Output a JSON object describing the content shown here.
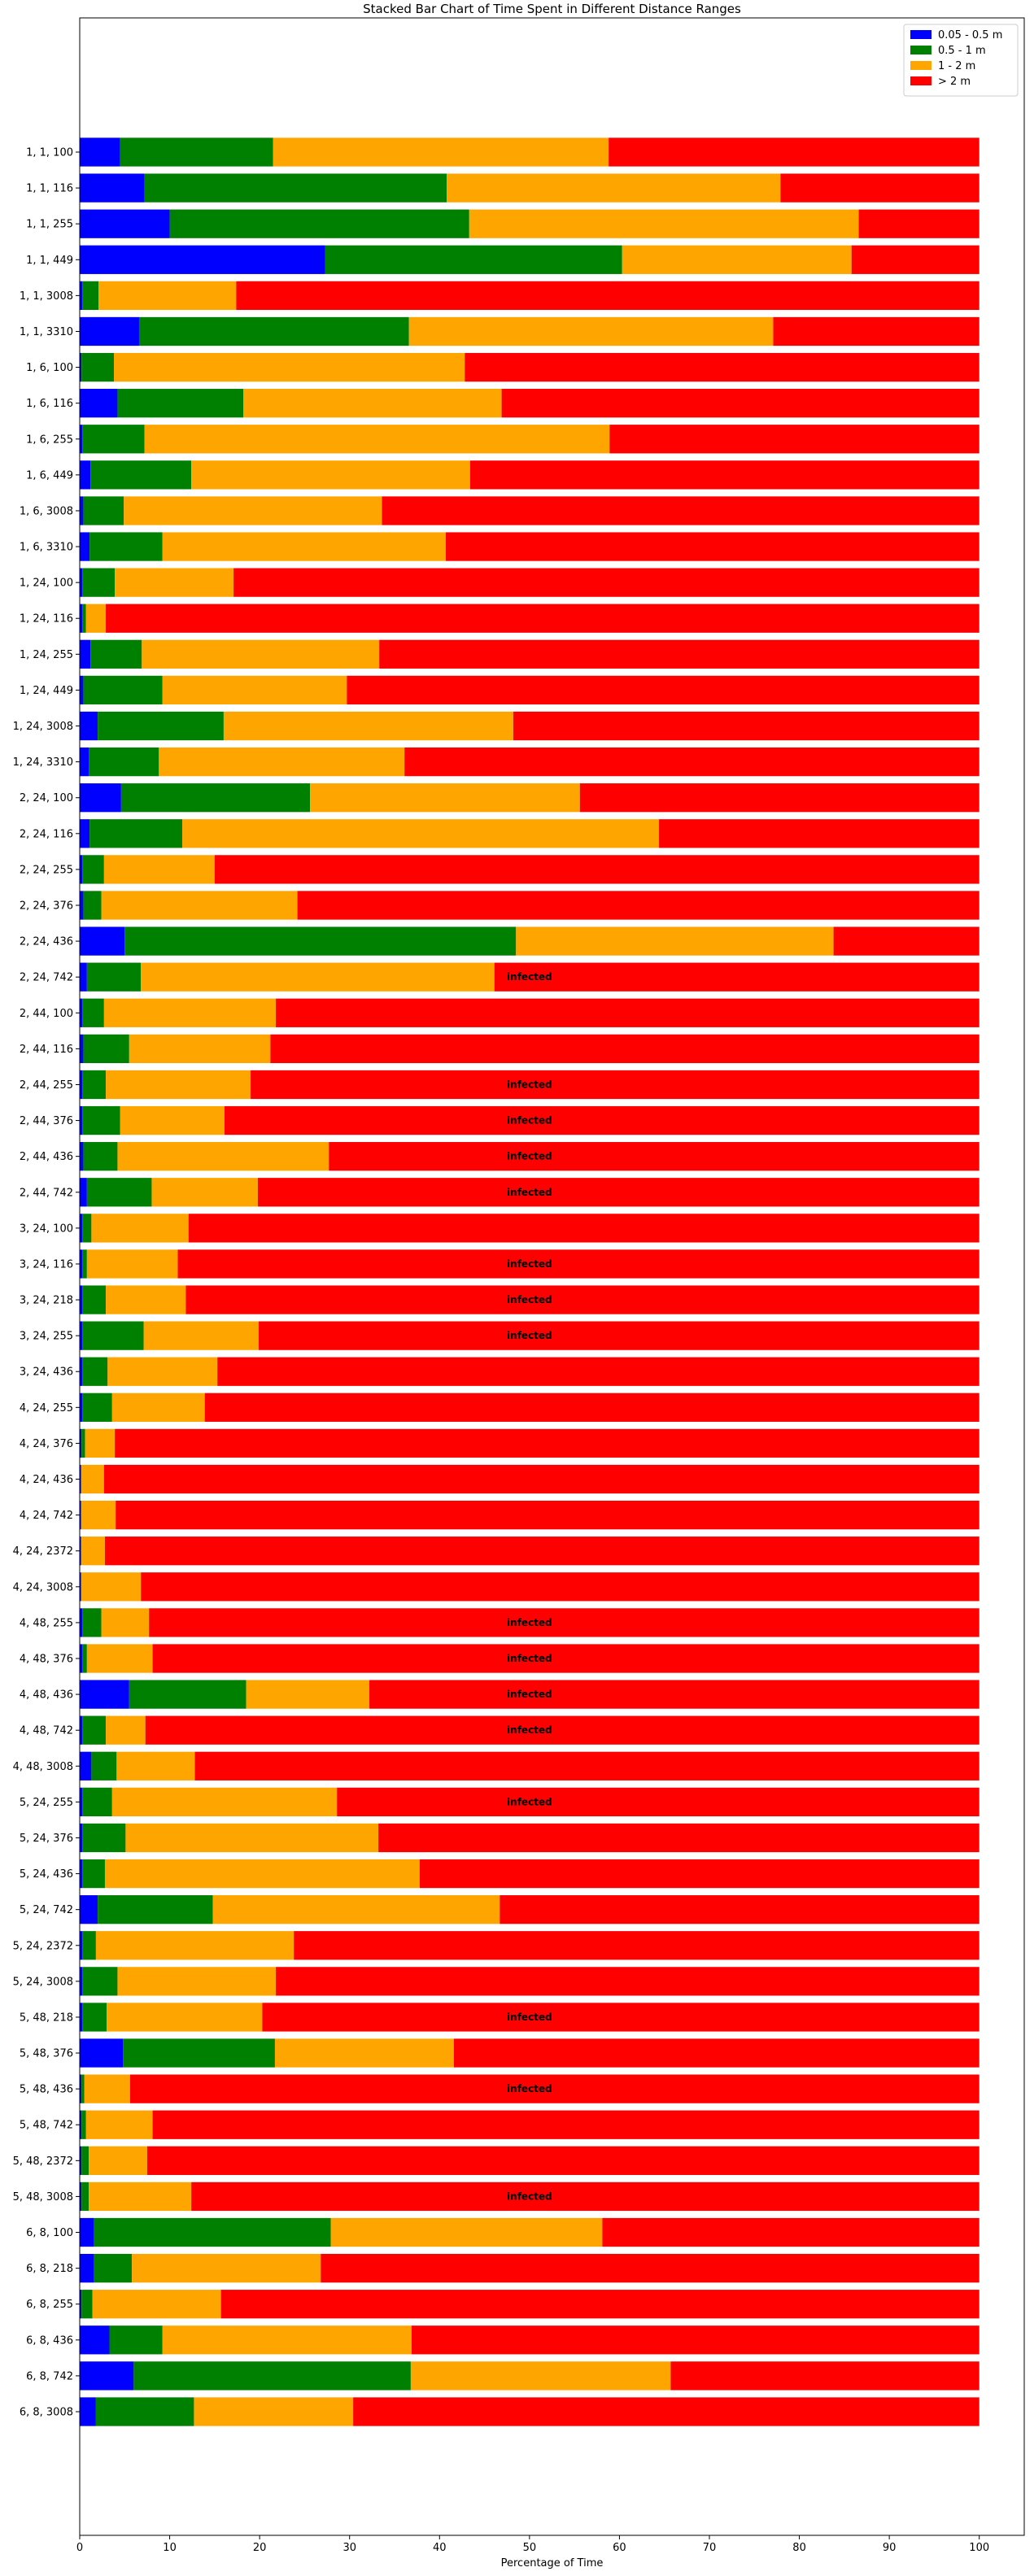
{
  "chart_data": {
    "type": "bar",
    "orientation": "horizontal",
    "stacked": true,
    "title": "Stacked Bar Chart of Time Spent in Different Distance Ranges",
    "xlabel": "Percentage of Time",
    "ylabel": "",
    "xlim": [
      0,
      105
    ],
    "xticks": [
      0,
      10,
      20,
      30,
      40,
      50,
      60,
      70,
      80,
      90,
      100
    ],
    "grid": false,
    "legend_position": "top-right",
    "categories": [
      "1, 1, 100",
      "1, 1, 116",
      "1, 1, 255",
      "1, 1, 449",
      "1, 1, 3008",
      "1, 1, 3310",
      "1, 6, 100",
      "1, 6, 116",
      "1, 6, 255",
      "1, 6, 449",
      "1, 6, 3008",
      "1, 6, 3310",
      "1, 24, 100",
      "1, 24, 116",
      "1, 24, 255",
      "1, 24, 449",
      "1, 24, 3008",
      "1, 24, 3310",
      "2, 24, 100",
      "2, 24, 116",
      "2, 24, 255",
      "2, 24, 376",
      "2, 24, 436",
      "2, 24, 742",
      "2, 44, 100",
      "2, 44, 116",
      "2, 44, 255",
      "2, 44, 376",
      "2, 44, 436",
      "2, 44, 742",
      "3, 24, 100",
      "3, 24, 116",
      "3, 24, 218",
      "3, 24, 255",
      "3, 24, 436",
      "4, 24, 255",
      "4, 24, 376",
      "4, 24, 436",
      "4, 24, 742",
      "4, 24, 2372",
      "4, 24, 3008",
      "4, 48, 255",
      "4, 48, 376",
      "4, 48, 436",
      "4, 48, 742",
      "4, 48, 3008",
      "5, 24, 255",
      "5, 24, 376",
      "5, 24, 436",
      "5, 24, 742",
      "5, 24, 2372",
      "5, 24, 3008",
      "5, 48, 218",
      "5, 48, 376",
      "5, 48, 436",
      "5, 48, 742",
      "5, 48, 2372",
      "5, 48, 3008",
      "6, 8, 100",
      "6, 8, 218",
      "6, 8, 255",
      "6, 8, 436",
      "6, 8, 742",
      "6, 8, 3008"
    ],
    "series": [
      {
        "name": "0.05 - 0.5 m",
        "color": "#0000ff",
        "values": [
          4.5,
          7.2,
          10.0,
          27.3,
          0.3,
          6.6,
          0.2,
          4.2,
          0.3,
          1.2,
          0.4,
          1.1,
          0.3,
          0.3,
          1.2,
          0.4,
          2.0,
          1.0,
          4.6,
          1.1,
          0.3,
          0.4,
          5.0,
          0.8,
          0.3,
          0.4,
          0.3,
          0.3,
          0.4,
          0.8,
          0.3,
          0.3,
          0.3,
          0.3,
          0.3,
          0.3,
          0.2,
          0.1,
          0.1,
          0.1,
          0.1,
          0.3,
          0.3,
          5.5,
          0.3,
          1.3,
          0.3,
          0.3,
          0.3,
          2.0,
          0.3,
          0.3,
          0.3,
          4.8,
          0.2,
          0.2,
          0.2,
          0.2,
          1.6,
          1.6,
          0.2,
          3.3,
          6.0,
          1.8
        ]
      },
      {
        "name": "0.5 - 1 m",
        "color": "#008000",
        "values": [
          17.0,
          33.6,
          33.3,
          33.0,
          1.8,
          30.0,
          3.6,
          14.0,
          6.9,
          11.2,
          4.5,
          8.1,
          3.6,
          0.4,
          5.7,
          8.8,
          14.0,
          7.8,
          21.0,
          10.3,
          2.4,
          2.0,
          43.5,
          6.0,
          2.4,
          5.1,
          2.6,
          4.2,
          3.8,
          7.2,
          1.0,
          0.5,
          2.6,
          6.8,
          2.8,
          3.3,
          0.4,
          0.1,
          0.1,
          0.1,
          0.1,
          2.1,
          0.5,
          13.0,
          2.6,
          2.8,
          3.3,
          4.8,
          2.5,
          12.8,
          1.5,
          3.9,
          2.7,
          16.9,
          0.3,
          0.5,
          0.8,
          0.8,
          26.3,
          4.2,
          1.2,
          5.9,
          30.8,
          10.9
        ]
      },
      {
        "name": "1 - 2 m",
        "color": "#ffa500",
        "values": [
          37.3,
          37.1,
          43.3,
          25.5,
          15.3,
          40.5,
          39.0,
          28.7,
          51.7,
          31.0,
          28.7,
          31.5,
          13.2,
          2.2,
          26.4,
          20.5,
          32.2,
          27.3,
          30.0,
          53.0,
          12.3,
          21.8,
          35.3,
          39.3,
          19.1,
          15.7,
          16.1,
          11.6,
          23.5,
          11.8,
          10.8,
          10.1,
          8.9,
          12.8,
          12.2,
          10.3,
          3.3,
          2.5,
          3.8,
          2.6,
          6.6,
          5.3,
          7.3,
          13.7,
          4.4,
          8.7,
          25.0,
          28.1,
          35.0,
          31.9,
          22.0,
          17.6,
          17.3,
          19.9,
          5.1,
          7.4,
          6.5,
          11.4,
          30.2,
          21.0,
          14.3,
          27.7,
          28.9,
          17.7
        ]
      },
      {
        "name": "> 2 m",
        "color": "#ff0000",
        "values": [
          41.2,
          22.1,
          13.4,
          14.2,
          82.6,
          22.9,
          57.2,
          53.1,
          41.1,
          56.6,
          66.4,
          59.3,
          82.9,
          97.1,
          66.7,
          70.3,
          51.8,
          63.9,
          44.4,
          35.6,
          85.0,
          75.8,
          16.2,
          53.9,
          78.2,
          78.8,
          81.0,
          83.9,
          72.3,
          80.2,
          87.9,
          89.1,
          88.2,
          80.1,
          84.7,
          86.1,
          96.1,
          97.3,
          96.0,
          97.2,
          93.2,
          92.3,
          91.9,
          67.8,
          92.7,
          87.2,
          71.4,
          66.8,
          62.2,
          53.3,
          76.2,
          78.2,
          79.7,
          58.4,
          94.4,
          91.9,
          92.5,
          87.6,
          41.9,
          73.2,
          84.3,
          63.1,
          34.3,
          69.6
        ]
      }
    ],
    "annotations": [
      {
        "category": "2, 24, 742",
        "text": "infected"
      },
      {
        "category": "2, 44, 255",
        "text": "infected"
      },
      {
        "category": "2, 44, 376",
        "text": "infected"
      },
      {
        "category": "2, 44, 436",
        "text": "infected"
      },
      {
        "category": "2, 44, 742",
        "text": "infected"
      },
      {
        "category": "3, 24, 116",
        "text": "infected"
      },
      {
        "category": "3, 24, 218",
        "text": "infected"
      },
      {
        "category": "3, 24, 255",
        "text": "infected"
      },
      {
        "category": "4, 48, 255",
        "text": "infected"
      },
      {
        "category": "4, 48, 376",
        "text": "infected"
      },
      {
        "category": "4, 48, 436",
        "text": "infected"
      },
      {
        "category": "4, 48, 742",
        "text": "infected"
      },
      {
        "category": "5, 24, 255",
        "text": "infected"
      },
      {
        "category": "5, 48, 218",
        "text": "infected"
      },
      {
        "category": "5, 48, 436",
        "text": "infected"
      },
      {
        "category": "5, 48, 3008",
        "text": "infected"
      }
    ],
    "annotation_x": 50
  }
}
